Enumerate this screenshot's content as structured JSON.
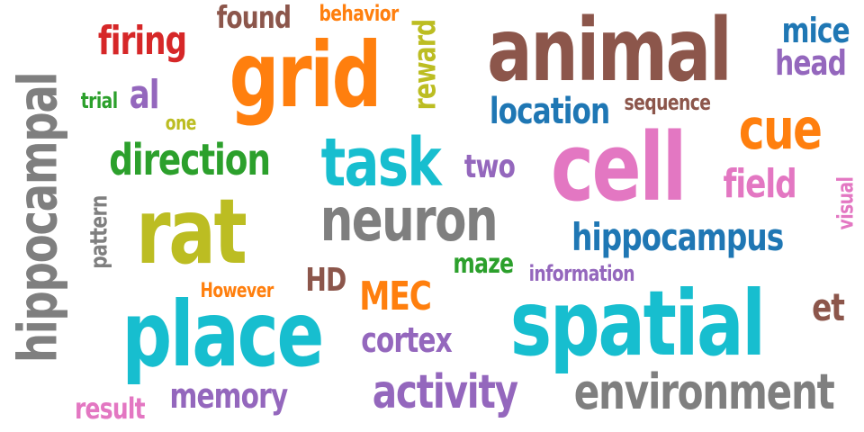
{
  "palette": {
    "brown": "#8c564b",
    "orange": "#ff7f0e",
    "red": "#d62728",
    "olive": "#bcbd22",
    "green": "#2ca02c",
    "cyan": "#17becf",
    "blue": "#1f77b4",
    "purple": "#9467bd",
    "pink": "#e377c2",
    "gray": "#7f7f7f"
  },
  "words": [
    {
      "text": "animal",
      "color": "brown"
    },
    {
      "text": "grid",
      "color": "orange"
    },
    {
      "text": "cell",
      "color": "pink"
    },
    {
      "text": "rat",
      "color": "olive"
    },
    {
      "text": "place",
      "color": "cyan"
    },
    {
      "text": "spatial",
      "color": "cyan"
    },
    {
      "text": "hippocampal",
      "color": "gray"
    },
    {
      "text": "neuron",
      "color": "gray"
    },
    {
      "text": "task",
      "color": "cyan"
    },
    {
      "text": "cue",
      "color": "orange"
    },
    {
      "text": "environment",
      "color": "gray"
    },
    {
      "text": "activity",
      "color": "purple"
    },
    {
      "text": "direction",
      "color": "green"
    },
    {
      "text": "hippocampus",
      "color": "blue"
    },
    {
      "text": "firing",
      "color": "red"
    },
    {
      "text": "location",
      "color": "blue"
    },
    {
      "text": "memory",
      "color": "purple"
    },
    {
      "text": "cortex",
      "color": "purple"
    },
    {
      "text": "MEC",
      "color": "orange"
    },
    {
      "text": "mice",
      "color": "blue"
    },
    {
      "text": "head",
      "color": "purple"
    },
    {
      "text": "field",
      "color": "pink"
    },
    {
      "text": "found",
      "color": "brown"
    },
    {
      "text": "al",
      "color": "purple"
    },
    {
      "text": "et",
      "color": "brown"
    },
    {
      "text": "two",
      "color": "purple"
    },
    {
      "text": "HD",
      "color": "brown"
    },
    {
      "text": "reward",
      "color": "olive"
    },
    {
      "text": "pattern",
      "color": "gray"
    },
    {
      "text": "visual",
      "color": "pink"
    },
    {
      "text": "maze",
      "color": "green"
    },
    {
      "text": "result",
      "color": "pink"
    },
    {
      "text": "behavior",
      "color": "orange"
    },
    {
      "text": "sequence",
      "color": "brown"
    },
    {
      "text": "information",
      "color": "purple"
    },
    {
      "text": "However",
      "color": "orange"
    },
    {
      "text": "trial",
      "color": "green"
    },
    {
      "text": "one",
      "color": "olive"
    }
  ]
}
